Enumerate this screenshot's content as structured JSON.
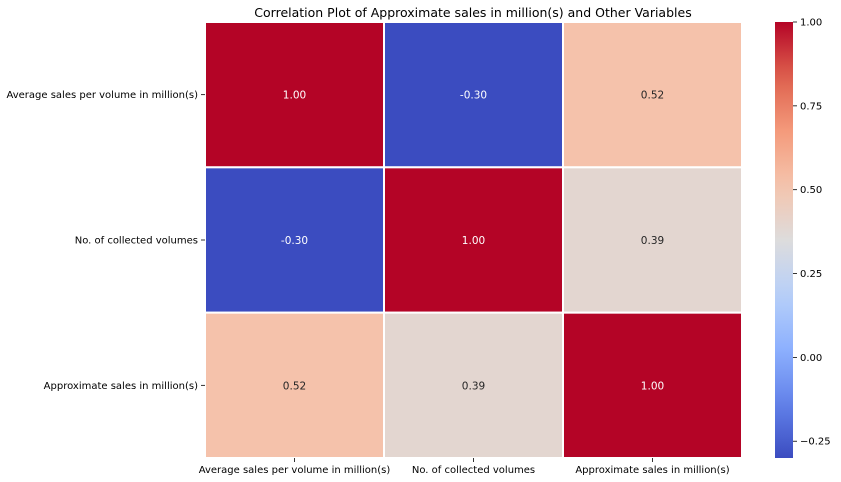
{
  "chart_data": {
    "type": "heatmap",
    "title": "Correlation Plot of Approximate sales in million(s) and Other Variables",
    "row_labels": [
      "Average sales per volume in million(s)",
      "No. of collected volumes",
      "Approximate sales in million(s)"
    ],
    "col_labels": [
      "Average sales per volume in million(s)",
      "No. of collected volumes",
      "Approximate sales in million(s)"
    ],
    "values": [
      [
        1.0,
        -0.3,
        0.52
      ],
      [
        -0.3,
        1.0,
        0.39
      ],
      [
        0.52,
        0.39,
        1.0
      ]
    ],
    "cell_labels": [
      [
        "1.00",
        "-0.30",
        "0.52"
      ],
      [
        "-0.30",
        "1.00",
        "0.39"
      ],
      [
        "0.52",
        "0.39",
        "1.00"
      ]
    ],
    "colormap": "coolwarm",
    "color_range": [
      -0.3,
      1.0
    ],
    "colorbar_ticks": [
      1.0,
      0.75,
      0.5,
      0.25,
      0.0,
      -0.25
    ],
    "colorbar_tick_labels": [
      "1.00",
      "0.75",
      "0.50",
      "0.25",
      "0.00",
      "−0.25"
    ],
    "colors": {
      "low": "#3b4cc0",
      "mid": "#dddcdc",
      "high": "#b40426",
      "grid_line": "#ffffff"
    }
  }
}
